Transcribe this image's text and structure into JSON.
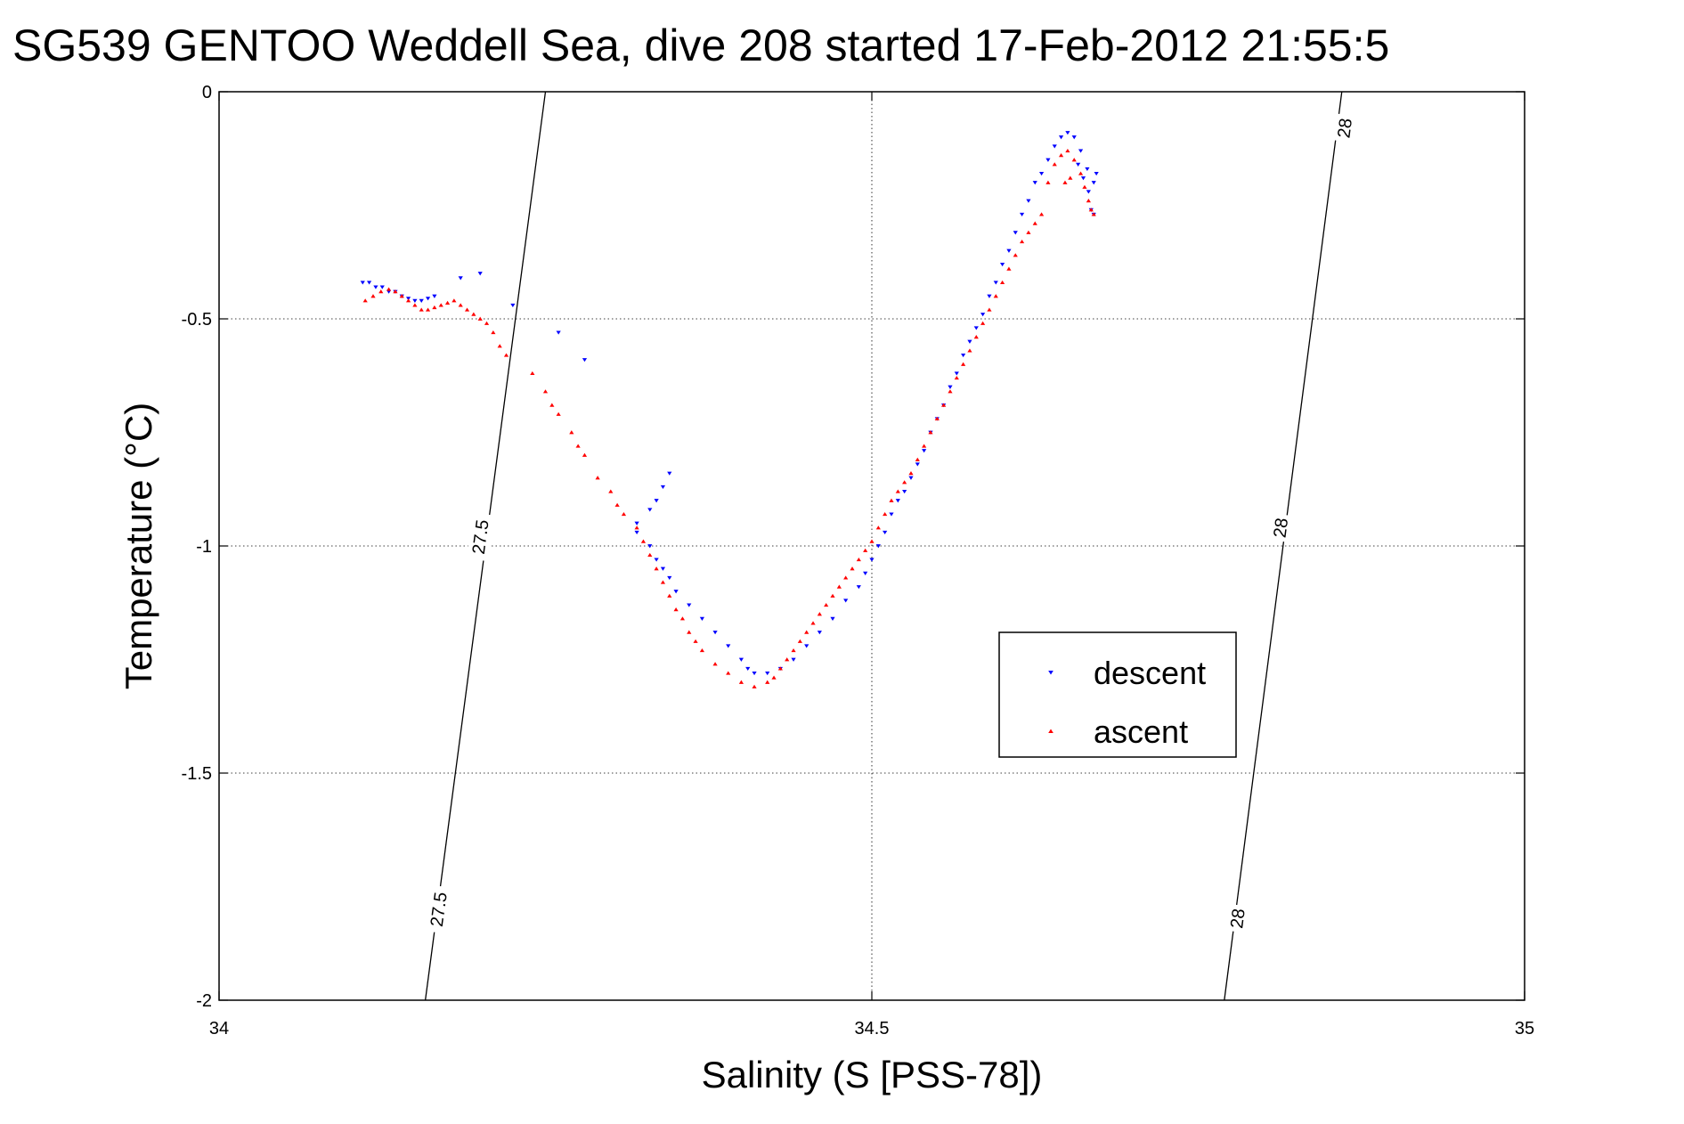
{
  "chart_data": {
    "type": "scatter",
    "title": "SG539 GENTOO Weddell Sea, dive 208 started 17-Feb-2012 21:55:5",
    "xlabel": "Salinity (S [PSS-78])",
    "ylabel": "Temperature (°C)",
    "xlim": [
      34,
      35
    ],
    "ylim": [
      -2,
      0
    ],
    "x_ticks": [
      34,
      34.5,
      35
    ],
    "x_tick_labels": [
      "34",
      "34.5",
      "35"
    ],
    "y_ticks": [
      0,
      -0.5,
      -1,
      -1.5,
      -2
    ],
    "y_tick_labels": [
      "0",
      "-0.5",
      "-1",
      "-1.5",
      "-2"
    ],
    "grid": true,
    "legend": {
      "placement": "lower-right",
      "entries": [
        "descent",
        "ascent"
      ]
    },
    "contours": [
      {
        "label": "27.5",
        "points": [
          [
            34.158,
            -2.0
          ],
          [
            34.25,
            0.0
          ]
        ],
        "label_positions": [
          [
            34.168,
            -1.8
          ],
          [
            34.2,
            -0.98
          ]
        ]
      },
      {
        "label": "28",
        "points": [
          [
            34.77,
            -2.0
          ],
          [
            34.86,
            0.0
          ]
        ],
        "label_positions": [
          [
            34.78,
            -1.82
          ],
          [
            34.813,
            -0.96
          ],
          [
            34.862,
            -0.08
          ]
        ]
      }
    ],
    "series": [
      {
        "name": "descent",
        "color": "#0000ff",
        "marker": "triangle-down",
        "points": [
          [
            34.11,
            -0.42
          ],
          [
            34.115,
            -0.42
          ],
          [
            34.12,
            -0.43
          ],
          [
            34.125,
            -0.43
          ],
          [
            34.13,
            -0.44
          ],
          [
            34.135,
            -0.44
          ],
          [
            34.14,
            -0.45
          ],
          [
            34.145,
            -0.455
          ],
          [
            34.15,
            -0.46
          ],
          [
            34.155,
            -0.46
          ],
          [
            34.16,
            -0.455
          ],
          [
            34.165,
            -0.45
          ],
          [
            34.185,
            -0.41
          ],
          [
            34.2,
            -0.4
          ],
          [
            34.225,
            -0.47
          ],
          [
            34.26,
            -0.53
          ],
          [
            34.28,
            -0.59
          ],
          [
            34.32,
            -0.95
          ],
          [
            34.33,
            -0.92
          ],
          [
            34.335,
            -0.9
          ],
          [
            34.34,
            -0.87
          ],
          [
            34.345,
            -0.84
          ],
          [
            34.32,
            -0.97
          ],
          [
            34.33,
            -1.0
          ],
          [
            34.335,
            -1.03
          ],
          [
            34.34,
            -1.05
          ],
          [
            34.345,
            -1.07
          ],
          [
            34.35,
            -1.1
          ],
          [
            34.36,
            -1.13
          ],
          [
            34.37,
            -1.16
          ],
          [
            34.38,
            -1.19
          ],
          [
            34.39,
            -1.22
          ],
          [
            34.4,
            -1.25
          ],
          [
            34.405,
            -1.27
          ],
          [
            34.41,
            -1.28
          ],
          [
            34.42,
            -1.28
          ],
          [
            34.43,
            -1.27
          ],
          [
            34.44,
            -1.25
          ],
          [
            34.45,
            -1.22
          ],
          [
            34.46,
            -1.19
          ],
          [
            34.47,
            -1.16
          ],
          [
            34.48,
            -1.12
          ],
          [
            34.49,
            -1.09
          ],
          [
            34.495,
            -1.06
          ],
          [
            34.5,
            -1.03
          ],
          [
            34.505,
            -1.0
          ],
          [
            34.51,
            -0.97
          ],
          [
            34.515,
            -0.93
          ],
          [
            34.52,
            -0.9
          ],
          [
            34.525,
            -0.88
          ],
          [
            34.53,
            -0.85
          ],
          [
            34.535,
            -0.82
          ],
          [
            34.54,
            -0.79
          ],
          [
            34.545,
            -0.75
          ],
          [
            34.55,
            -0.72
          ],
          [
            34.555,
            -0.69
          ],
          [
            34.56,
            -0.65
          ],
          [
            34.565,
            -0.62
          ],
          [
            34.57,
            -0.58
          ],
          [
            34.575,
            -0.55
          ],
          [
            34.58,
            -0.52
          ],
          [
            34.585,
            -0.49
          ],
          [
            34.59,
            -0.45
          ],
          [
            34.595,
            -0.42
          ],
          [
            34.6,
            -0.38
          ],
          [
            34.605,
            -0.35
          ],
          [
            34.61,
            -0.31
          ],
          [
            34.615,
            -0.27
          ],
          [
            34.62,
            -0.24
          ],
          [
            34.625,
            -0.2
          ],
          [
            34.63,
            -0.18
          ],
          [
            34.635,
            -0.15
          ],
          [
            34.64,
            -0.12
          ],
          [
            34.645,
            -0.1
          ],
          [
            34.65,
            -0.09
          ],
          [
            34.655,
            -0.1
          ],
          [
            34.66,
            -0.13
          ],
          [
            34.665,
            -0.17
          ],
          [
            34.67,
            -0.2
          ],
          [
            34.666,
            -0.22
          ],
          [
            34.662,
            -0.19
          ],
          [
            34.658,
            -0.16
          ],
          [
            34.672,
            -0.18
          ],
          [
            34.668,
            -0.26
          ],
          [
            34.67,
            -0.27
          ]
        ]
      },
      {
        "name": "ascent",
        "color": "#ff0000",
        "marker": "triangle-up",
        "points": [
          [
            34.112,
            -0.46
          ],
          [
            34.118,
            -0.45
          ],
          [
            34.124,
            -0.44
          ],
          [
            34.13,
            -0.435
          ],
          [
            34.135,
            -0.44
          ],
          [
            34.14,
            -0.45
          ],
          [
            34.145,
            -0.46
          ],
          [
            34.15,
            -0.47
          ],
          [
            34.155,
            -0.48
          ],
          [
            34.16,
            -0.48
          ],
          [
            34.165,
            -0.475
          ],
          [
            34.17,
            -0.47
          ],
          [
            34.175,
            -0.465
          ],
          [
            34.18,
            -0.46
          ],
          [
            34.185,
            -0.47
          ],
          [
            34.19,
            -0.48
          ],
          [
            34.195,
            -0.49
          ],
          [
            34.2,
            -0.5
          ],
          [
            34.205,
            -0.51
          ],
          [
            34.21,
            -0.53
          ],
          [
            34.215,
            -0.56
          ],
          [
            34.22,
            -0.58
          ],
          [
            34.24,
            -0.62
          ],
          [
            34.25,
            -0.66
          ],
          [
            34.255,
            -0.69
          ],
          [
            34.26,
            -0.71
          ],
          [
            34.27,
            -0.75
          ],
          [
            34.275,
            -0.78
          ],
          [
            34.28,
            -0.8
          ],
          [
            34.29,
            -0.85
          ],
          [
            34.3,
            -0.88
          ],
          [
            34.305,
            -0.91
          ],
          [
            34.31,
            -0.93
          ],
          [
            34.32,
            -0.96
          ],
          [
            34.325,
            -0.99
          ],
          [
            34.33,
            -1.02
          ],
          [
            34.335,
            -1.05
          ],
          [
            34.34,
            -1.08
          ],
          [
            34.345,
            -1.11
          ],
          [
            34.35,
            -1.14
          ],
          [
            34.355,
            -1.16
          ],
          [
            34.36,
            -1.19
          ],
          [
            34.365,
            -1.21
          ],
          [
            34.37,
            -1.23
          ],
          [
            34.38,
            -1.26
          ],
          [
            34.39,
            -1.28
          ],
          [
            34.4,
            -1.3
          ],
          [
            34.41,
            -1.31
          ],
          [
            34.42,
            -1.3
          ],
          [
            34.425,
            -1.29
          ],
          [
            34.43,
            -1.27
          ],
          [
            34.435,
            -1.25
          ],
          [
            34.44,
            -1.23
          ],
          [
            34.445,
            -1.21
          ],
          [
            34.45,
            -1.19
          ],
          [
            34.455,
            -1.17
          ],
          [
            34.46,
            -1.15
          ],
          [
            34.465,
            -1.13
          ],
          [
            34.47,
            -1.11
          ],
          [
            34.475,
            -1.09
          ],
          [
            34.48,
            -1.07
          ],
          [
            34.485,
            -1.05
          ],
          [
            34.49,
            -1.03
          ],
          [
            34.495,
            -1.01
          ],
          [
            34.5,
            -0.99
          ],
          [
            34.505,
            -0.96
          ],
          [
            34.51,
            -0.93
          ],
          [
            34.515,
            -0.9
          ],
          [
            34.52,
            -0.88
          ],
          [
            34.525,
            -0.86
          ],
          [
            34.53,
            -0.84
          ],
          [
            34.535,
            -0.81
          ],
          [
            34.54,
            -0.78
          ],
          [
            34.545,
            -0.75
          ],
          [
            34.55,
            -0.72
          ],
          [
            34.555,
            -0.69
          ],
          [
            34.56,
            -0.66
          ],
          [
            34.565,
            -0.63
          ],
          [
            34.57,
            -0.6
          ],
          [
            34.575,
            -0.57
          ],
          [
            34.58,
            -0.54
          ],
          [
            34.585,
            -0.51
          ],
          [
            34.59,
            -0.48
          ],
          [
            34.595,
            -0.45
          ],
          [
            34.6,
            -0.42
          ],
          [
            34.605,
            -0.39
          ],
          [
            34.61,
            -0.36
          ],
          [
            34.615,
            -0.33
          ],
          [
            34.62,
            -0.31
          ],
          [
            34.625,
            -0.29
          ],
          [
            34.63,
            -0.27
          ],
          [
            34.635,
            -0.2
          ],
          [
            34.64,
            -0.16
          ],
          [
            34.645,
            -0.14
          ],
          [
            34.65,
            -0.13
          ],
          [
            34.655,
            -0.15
          ],
          [
            34.66,
            -0.18
          ],
          [
            34.663,
            -0.21
          ],
          [
            34.666,
            -0.24
          ],
          [
            34.668,
            -0.26
          ],
          [
            34.67,
            -0.27
          ],
          [
            34.652,
            -0.19
          ],
          [
            34.648,
            -0.2
          ]
        ]
      }
    ]
  }
}
